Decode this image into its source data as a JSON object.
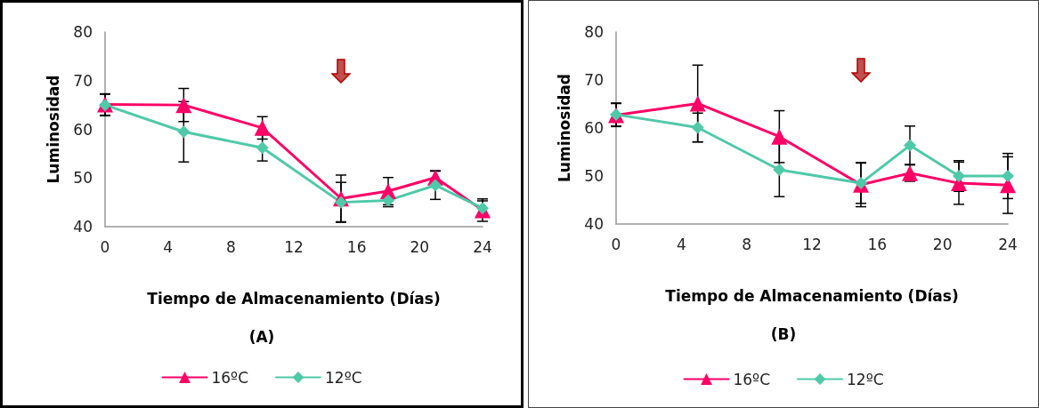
{
  "chart_data": [
    {
      "type": "line",
      "xlabel": "Tiempo de Almacenamiento (Días)",
      "ylabel": "Luminosidad",
      "annotations": [
        "(A)"
      ],
      "x": [
        0,
        5,
        10,
        15,
        18,
        21,
        24
      ],
      "xlim": [
        0,
        24
      ],
      "xticks": [
        0,
        4,
        8,
        12,
        16,
        20,
        24
      ],
      "ylim": [
        40,
        80
      ],
      "yticks": [
        40,
        50,
        60,
        70,
        80
      ],
      "grid": false,
      "legend": "bottom",
      "line_style": "solid",
      "series": [
        {
          "name": "16ºC",
          "color": "#ff0066",
          "marker": "triangle",
          "values": [
            65.1,
            65,
            60.3,
            45.8,
            47.3,
            50.1,
            43.4
          ],
          "errors": [
            2.2,
            3.4,
            2.3,
            4.8,
            2.8,
            1.4,
            2.3
          ]
        },
        {
          "name": "12ºC",
          "color": "#4fc9a8",
          "marker": "diamond",
          "values": [
            65,
            59.5,
            56.2,
            45,
            45.4,
            48.5,
            43.8
          ],
          "errors": [
            2.2,
            6.2,
            2.7,
            4.1,
            1.3,
            2.9,
            1.5
          ]
        }
      ]
    },
    {
      "type": "line",
      "xlabel": "Tiempo de Almacenamiento (Días)",
      "ylabel": "Luminosidad",
      "annotations": [
        "(B)"
      ],
      "x": [
        0,
        5,
        10,
        15,
        18,
        21,
        24
      ],
      "xlim": [
        0,
        24
      ],
      "xticks": [
        0,
        4,
        8,
        12,
        16,
        20,
        24
      ],
      "ylim": [
        40,
        80
      ],
      "yticks": [
        40,
        50,
        60,
        70,
        80
      ],
      "grid": false,
      "legend": "bottom",
      "line_style": "solid",
      "series": [
        {
          "name": "16ºC",
          "color": "#ff0066",
          "marker": "triangle",
          "values": [
            62.7,
            65.1,
            58.2,
            48.2,
            50.6,
            48.5,
            48.1
          ],
          "errors": [
            2.4,
            8,
            5.4,
            4.6,
            1.7,
            4.4,
            5.9
          ]
        },
        {
          "name": "12ºC",
          "color": "#4fc9a8",
          "marker": "diamond",
          "values": [
            62.8,
            60.1,
            51.3,
            48.5,
            56.4,
            50,
            50
          ],
          "errors": [
            2.4,
            3,
            5.6,
            4.2,
            4,
            3.2,
            4.7
          ]
        }
      ]
    }
  ]
}
